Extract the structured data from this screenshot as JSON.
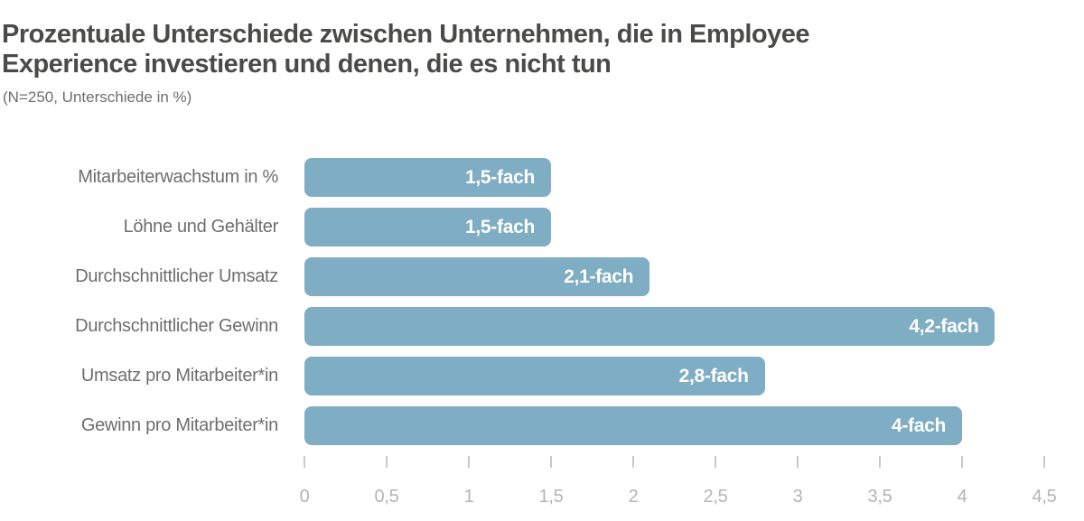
{
  "chart_data": {
    "type": "bar",
    "orientation": "horizontal",
    "title": "Prozentuale Unterschiede zwischen Unternehmen, die in Employee Experience investieren und denen, die es nicht tun",
    "title_lines": [
      "Prozentuale Unterschiede zwischen Unternehmen, die in Employee",
      "Experience investieren und denen, die es nicht tun"
    ],
    "subtitle": "(N=250, Unterschiede in %)",
    "categories": [
      "Mitarbeiterwachstum in %",
      "Löhne und Gehälter",
      "Durchschnittlicher Umsatz",
      "Durchschnittlicher Gewinn",
      "Umsatz pro Mitarbeiter*in",
      "Gewinn pro Mitarbeiter*in"
    ],
    "values": [
      1.5,
      1.5,
      2.1,
      4.2,
      2.8,
      4
    ],
    "value_labels": [
      "1,5-fach",
      "1,5-fach",
      "2,1-fach",
      "4,2-fach",
      "2,8-fach",
      "4-fach"
    ],
    "xlim": [
      0,
      4.5
    ],
    "x_tick_values": [
      0,
      0.5,
      1,
      1.5,
      2,
      2.5,
      3,
      3.5,
      4,
      4.5
    ],
    "x_tick_labels": [
      "0",
      "0,5",
      "1",
      "1,5",
      "2",
      "2,5",
      "3",
      "3,5",
      "4",
      "4,5"
    ],
    "grid": "off",
    "legend": "none",
    "colors": {
      "bar": "#7fadc3",
      "value_label": "#ffffff",
      "title": "#4a4a48",
      "category_label": "#6f6e6e",
      "tick_mark": "#c9c9c9",
      "tick_label": "#b4b4b3"
    }
  }
}
